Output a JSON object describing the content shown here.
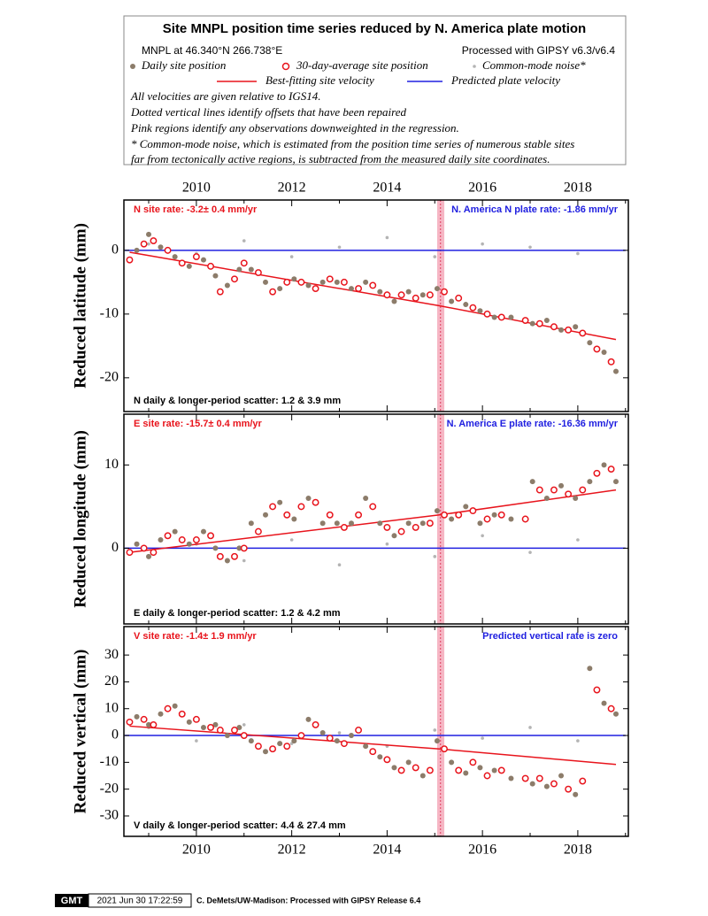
{
  "header": {
    "title": "Site MNPL position time series reduced by N. America plate motion",
    "location": "MNPL at 46.340°N 266.738°E",
    "processing": "Processed with GIPSY v6.3/v6.4",
    "legend": [
      "Daily site position",
      "30-day-average site position",
      "Common-mode noise*",
      "Best-fitting site velocity",
      "Predicted plate velocity"
    ],
    "notes": [
      "All velocities are given relative to IGS14.",
      "Dotted vertical lines identify offsets that have been repaired",
      "Pink regions identify any observations downweighted in the regression.",
      "* Common-mode noise, which is estimated from the position time series of numerous stable sites",
      "far from tectonically active regions, is subtracted from the measured daily site coordinates."
    ]
  },
  "chart_data": [
    {
      "type": "scatter",
      "ylabel": "Reduced latitude (mm)",
      "rate_label": "N site rate:  -3.2± 0.4 mm/yr",
      "plate_label": "N. America N plate rate: -1.86 mm/yr",
      "scatter_label": "N daily & longer-period scatter:   1.2 &   3.9 mm",
      "xlim": [
        2008.48,
        2019.06
      ],
      "xticks": [
        2010,
        2012,
        2014,
        2016,
        2018
      ],
      "xminor": [
        2009,
        2011,
        2013,
        2015,
        2017,
        2019
      ],
      "ylim": [
        -25.3,
        7.9
      ],
      "yticks": [
        -20,
        -10,
        0
      ],
      "downweighted": [
        2015.05,
        2015.2
      ],
      "offsets": [
        2015.12
      ],
      "series": [
        {
          "marker": "noise",
          "color": "#b4b4b4",
          "x": [
            2009,
            2010,
            2011,
            2012,
            2013,
            2014,
            2015,
            2016,
            2017,
            2018
          ],
          "values": [
            1,
            -0.5,
            1.5,
            -1,
            0.5,
            2,
            -1,
            1,
            0.5,
            -0.5
          ]
        },
        {
          "marker": "dot",
          "color": "#8c7c6a",
          "x": [
            2008.75,
            2009.0,
            2009.25,
            2009.55,
            2009.85,
            2010.15,
            2010.4,
            2010.65,
            2010.9,
            2011.15,
            2011.45,
            2011.75,
            2012.05,
            2012.35,
            2012.65,
            2012.95,
            2013.25,
            2013.55,
            2013.85,
            2014.15,
            2014.45,
            2014.75,
            2015.05,
            2015.35,
            2015.65,
            2015.95,
            2016.25,
            2016.6,
            2017.05,
            2017.35,
            2017.65,
            2017.95,
            2018.25,
            2018.55,
            2018.8
          ],
          "values": [
            0,
            2.5,
            0.5,
            -1,
            -2.5,
            -1.5,
            -4,
            -5.5,
            -3,
            -3,
            -5,
            -6,
            -4.5,
            -5.5,
            -5,
            -5,
            -6,
            -5,
            -6.5,
            -8,
            -6.5,
            -7,
            -6,
            -8,
            -8.5,
            -9.5,
            -10.5,
            -10.5,
            -11.5,
            -11,
            -12.5,
            -12,
            -14.5,
            -16,
            -19
          ]
        },
        {
          "marker": "ring",
          "color": "#e8141c",
          "x": [
            2008.6,
            2008.9,
            2009.1,
            2009.4,
            2009.7,
            2010.0,
            2010.3,
            2010.5,
            2010.8,
            2011.0,
            2011.3,
            2011.6,
            2011.9,
            2012.2,
            2012.5,
            2012.8,
            2013.1,
            2013.4,
            2013.7,
            2014.0,
            2014.3,
            2014.6,
            2014.9,
            2015.2,
            2015.5,
            2015.8,
            2016.1,
            2016.4,
            2016.9,
            2017.2,
            2017.5,
            2017.8,
            2018.1,
            2018.4,
            2018.7
          ],
          "values": [
            -1.5,
            1,
            1.5,
            0,
            -2,
            -1,
            -2.5,
            -6.5,
            -4.5,
            -2,
            -3.5,
            -6.5,
            -5,
            -5,
            -6,
            -4.5,
            -5,
            -6,
            -5.5,
            -7,
            -7,
            -7.5,
            -7,
            -6.5,
            -7.5,
            -9,
            -10,
            -10.5,
            -11,
            -11.5,
            -12,
            -12.5,
            -13,
            -15.5,
            -17.5
          ]
        },
        {
          "marker": "line",
          "color": "#2020e0",
          "x": [
            2008.5,
            2019.0
          ],
          "values": [
            0,
            0
          ]
        },
        {
          "marker": "line",
          "color": "#e8141c",
          "x": [
            2008.6,
            2015.1,
            2018.8
          ],
          "values": [
            -0.3,
            -8.7,
            -14.0
          ]
        }
      ]
    },
    {
      "type": "scatter",
      "ylabel": "Reduced longitude (mm)",
      "rate_label": "E site rate: -15.7± 0.4 mm/yr",
      "plate_label": "N. America E plate rate: -16.36 mm/yr",
      "scatter_label": "E daily & longer-period scatter:   1.2 &   4.2 mm",
      "xlim": [
        2008.48,
        2019.06
      ],
      "xticks": [
        2010,
        2012,
        2014,
        2016,
        2018
      ],
      "xminor": [
        2009,
        2011,
        2013,
        2015,
        2017,
        2019
      ],
      "ylim": [
        -9.1,
        16.1
      ],
      "yticks": [
        0,
        10
      ],
      "downweighted": [
        2015.05,
        2015.2
      ],
      "offsets": [
        2015.12
      ],
      "series": [
        {
          "marker": "noise",
          "color": "#b4b4b4",
          "x": [
            2009,
            2010,
            2011,
            2012,
            2013,
            2014,
            2015,
            2016,
            2017,
            2018
          ],
          "values": [
            -1,
            0.5,
            -1.5,
            1,
            -2,
            0.5,
            -1,
            1.5,
            -0.5,
            1
          ]
        },
        {
          "marker": "dot",
          "color": "#8c7c6a",
          "x": [
            2008.75,
            2009.0,
            2009.25,
            2009.55,
            2009.85,
            2010.15,
            2010.4,
            2010.65,
            2010.9,
            2011.15,
            2011.45,
            2011.75,
            2012.05,
            2012.35,
            2012.65,
            2012.95,
            2013.25,
            2013.55,
            2013.85,
            2014.15,
            2014.45,
            2014.75,
            2015.05,
            2015.35,
            2015.65,
            2015.95,
            2016.25,
            2016.6,
            2017.05,
            2017.35,
            2017.65,
            2017.95,
            2018.25,
            2018.55,
            2018.8
          ],
          "values": [
            0.5,
            -1,
            1,
            2,
            0.5,
            2,
            0,
            -1.5,
            0,
            3,
            4,
            5.5,
            3.5,
            6,
            3,
            3,
            3,
            6,
            3,
            1.5,
            3,
            3,
            4.5,
            3.5,
            5,
            3,
            4,
            3.5,
            8,
            6,
            7.5,
            6,
            8,
            10,
            8
          ]
        },
        {
          "marker": "ring",
          "color": "#e8141c",
          "x": [
            2008.6,
            2008.9,
            2009.1,
            2009.4,
            2009.7,
            2010.0,
            2010.3,
            2010.5,
            2010.8,
            2011.0,
            2011.3,
            2011.6,
            2011.9,
            2012.2,
            2012.5,
            2012.8,
            2013.1,
            2013.4,
            2013.7,
            2014.0,
            2014.3,
            2014.6,
            2014.9,
            2015.2,
            2015.5,
            2015.8,
            2016.1,
            2016.4,
            2016.9,
            2017.2,
            2017.5,
            2017.8,
            2018.1,
            2018.4,
            2018.7
          ],
          "values": [
            -0.5,
            0,
            -0.5,
            1.5,
            1,
            1,
            1.5,
            -1,
            -1,
            0,
            2,
            5,
            4,
            5,
            5.5,
            4,
            2.5,
            4,
            5,
            2.5,
            2,
            2.5,
            3,
            4,
            4,
            4.5,
            3.5,
            4,
            3.5,
            7,
            7,
            6.5,
            7,
            9,
            9.5
          ]
        },
        {
          "marker": "line",
          "color": "#2020e0",
          "x": [
            2008.5,
            2019.0
          ],
          "values": [
            0,
            0
          ]
        },
        {
          "marker": "line",
          "color": "#e8141c",
          "x": [
            2008.6,
            2015.1,
            2018.8
          ],
          "values": [
            -0.5,
            4.0,
            7.0
          ]
        }
      ]
    },
    {
      "type": "scatter",
      "ylabel": "Reduced vertical (mm)",
      "rate_label": "V site rate:  -1.4± 1.9 mm/yr",
      "plate_label": "Predicted vertical rate is zero",
      "scatter_label": "V daily & longer-period scatter:   4.4 &  27.4 mm",
      "xlim": [
        2008.48,
        2019.06
      ],
      "xticks": [
        2010,
        2012,
        2014,
        2016,
        2018
      ],
      "xminor": [
        2009,
        2011,
        2013,
        2015,
        2017,
        2019
      ],
      "ylim": [
        -37.6,
        40.6
      ],
      "yticks": [
        -30,
        -20,
        -10,
        0,
        10,
        20,
        30
      ],
      "downweighted": [
        2015.05,
        2015.2
      ],
      "offsets": [
        2015.12
      ],
      "series": [
        {
          "marker": "noise",
          "color": "#b4b4b4",
          "x": [
            2009,
            2010,
            2011,
            2012,
            2013,
            2014,
            2015,
            2016,
            2017,
            2018
          ],
          "values": [
            3,
            -2,
            4,
            -3,
            1,
            -4,
            2,
            -1,
            3,
            -2
          ]
        },
        {
          "marker": "dot",
          "color": "#8c7c6a",
          "x": [
            2008.75,
            2009.0,
            2009.25,
            2009.55,
            2009.85,
            2010.15,
            2010.4,
            2010.65,
            2010.9,
            2011.15,
            2011.45,
            2011.75,
            2012.05,
            2012.35,
            2012.65,
            2012.95,
            2013.25,
            2013.55,
            2013.85,
            2014.15,
            2014.45,
            2014.75,
            2015.05,
            2015.35,
            2015.65,
            2015.95,
            2016.25,
            2016.6,
            2017.05,
            2017.35,
            2017.65,
            2017.95,
            2018.25,
            2018.55,
            2018.8
          ],
          "values": [
            7,
            4,
            8,
            11,
            5,
            3,
            4,
            0,
            3,
            -2,
            -6,
            -3,
            -2,
            6,
            1,
            -2,
            0,
            -4,
            -8,
            -12,
            -10,
            -15,
            -2,
            -10,
            -14,
            -12,
            -13,
            -16,
            -18,
            -19,
            -15,
            -22,
            25,
            12,
            8
          ]
        },
        {
          "marker": "ring",
          "color": "#e8141c",
          "x": [
            2008.6,
            2008.9,
            2009.1,
            2009.4,
            2009.7,
            2010.0,
            2010.3,
            2010.5,
            2010.8,
            2011.0,
            2011.3,
            2011.6,
            2011.9,
            2012.2,
            2012.5,
            2012.8,
            2013.1,
            2013.4,
            2013.7,
            2014.0,
            2014.3,
            2014.6,
            2014.9,
            2015.2,
            2015.5,
            2015.8,
            2016.1,
            2016.4,
            2016.9,
            2017.2,
            2017.5,
            2017.8,
            2018.1,
            2018.4,
            2018.7
          ],
          "values": [
            5,
            6,
            4,
            10,
            8,
            6,
            3,
            2,
            2,
            0,
            -4,
            -5,
            -4,
            0,
            4,
            -1,
            -3,
            2,
            -6,
            -9,
            -13,
            -12,
            -13,
            -5,
            -13,
            -10,
            -15,
            -13,
            -16,
            -16,
            -18,
            -20,
            -17,
            17,
            10
          ]
        },
        {
          "marker": "line",
          "color": "#2020e0",
          "x": [
            2008.5,
            2019.0
          ],
          "values": [
            0,
            0
          ]
        },
        {
          "marker": "line",
          "color": "#e8141c",
          "x": [
            2008.6,
            2015.1,
            2018.8
          ],
          "values": [
            3.5,
            -5.0,
            -10.8
          ]
        }
      ]
    }
  ],
  "footer": {
    "logo": "GMT",
    "timestamp": "2021 Jun 30 17:22:59",
    "credit": "C. DeMets/UW-Madison: Processed with GIPSY Release 6.4"
  }
}
